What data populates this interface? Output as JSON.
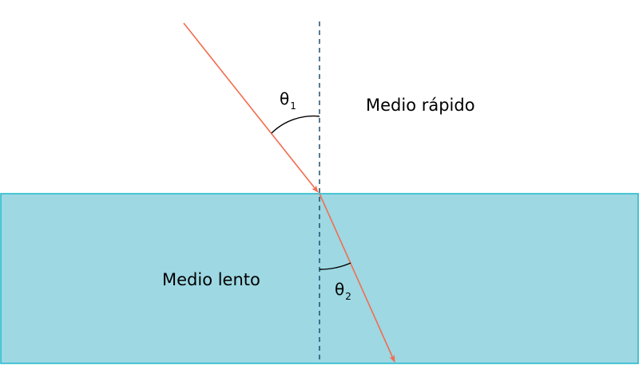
{
  "labels": {
    "fast_medium": "Medio rápido",
    "slow_medium": "Medio lento",
    "theta1_symbol": "θ",
    "theta1_subscript": "1",
    "theta2_symbol": "θ",
    "theta2_subscript": "2"
  },
  "colors": {
    "background": "#ffffff",
    "slow_medium_fill": "#9dd8e3",
    "slow_medium_border": "#1fb8cc",
    "ray": "#f26d4f",
    "normal_line": "#1f4e6e",
    "angle_arc": "#000000"
  }
}
